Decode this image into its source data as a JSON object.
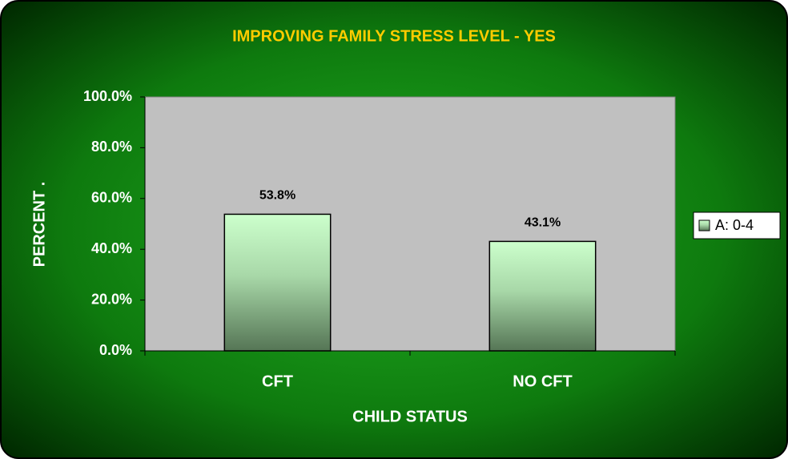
{
  "chart_data": {
    "type": "bar",
    "title": "IMPROVING FAMILY STRESS LEVEL - YES",
    "x_label": "CHILD STATUS",
    "y_label": "PERCENT     .",
    "categories": [
      "CFT",
      "NO CFT"
    ],
    "series": [
      {
        "name": "A: 0-4",
        "color": "#ccffcc",
        "values": [
          53.8,
          43.1
        ],
        "value_labels": [
          "53.8%",
          "43.1%"
        ]
      }
    ],
    "ylim": [
      0,
      100
    ],
    "yticks": [
      {
        "value": 0,
        "label": "0.0%"
      },
      {
        "value": 20,
        "label": "20.0%"
      },
      {
        "value": 40,
        "label": "40.0%"
      },
      {
        "value": 60,
        "label": "60.0%"
      },
      {
        "value": 80,
        "label": "80.0%"
      },
      {
        "value": 100,
        "label": "100.0%"
      }
    ],
    "grid": false,
    "legend": "right"
  }
}
